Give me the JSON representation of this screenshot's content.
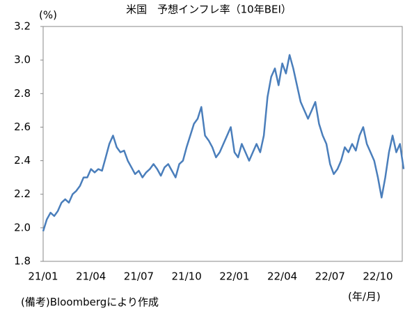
{
  "chart_data": {
    "type": "line",
    "title": "米国　予想インフレ率（10年BEI）",
    "y_unit_label": "(%)",
    "x_unit_label": "(年/月)",
    "source": "(備考)Bloombergにより作成",
    "categories": [
      "21/01",
      null,
      null,
      null,
      null,
      null,
      null,
      null,
      null,
      null,
      null,
      null,
      null,
      "21/04",
      null,
      null,
      null,
      null,
      null,
      null,
      null,
      null,
      null,
      null,
      null,
      null,
      "21/07",
      null,
      null,
      null,
      null,
      null,
      null,
      null,
      null,
      null,
      null,
      null,
      null,
      "21/10",
      null,
      null,
      null,
      null,
      null,
      null,
      null,
      null,
      null,
      null,
      null,
      null,
      "22/01",
      null,
      null,
      null,
      null,
      null,
      null,
      null,
      null,
      null,
      null,
      null,
      null,
      "22/04",
      null,
      null,
      null,
      null,
      null,
      null,
      null,
      null,
      null,
      null,
      null,
      null,
      "22/07",
      null,
      null,
      null,
      null,
      null,
      null,
      null,
      null,
      null,
      null,
      null,
      null,
      "22/10",
      null,
      null,
      null,
      null,
      null,
      null,
      null
    ],
    "values": [
      1.98,
      2.05,
      2.09,
      2.07,
      2.1,
      2.15,
      2.17,
      2.15,
      2.2,
      2.22,
      2.25,
      2.3,
      2.3,
      2.35,
      2.33,
      2.35,
      2.34,
      2.42,
      2.5,
      2.55,
      2.48,
      2.45,
      2.46,
      2.4,
      2.36,
      2.32,
      2.34,
      2.3,
      2.33,
      2.35,
      2.38,
      2.35,
      2.31,
      2.36,
      2.38,
      2.34,
      2.3,
      2.38,
      2.4,
      2.48,
      2.55,
      2.62,
      2.65,
      2.72,
      2.55,
      2.52,
      2.48,
      2.42,
      2.45,
      2.5,
      2.55,
      2.6,
      2.45,
      2.42,
      2.5,
      2.45,
      2.4,
      2.45,
      2.5,
      2.45,
      2.55,
      2.78,
      2.9,
      2.95,
      2.85,
      2.98,
      2.92,
      3.03,
      2.95,
      2.85,
      2.75,
      2.7,
      2.65,
      2.7,
      2.75,
      2.62,
      2.55,
      2.5,
      2.38,
      2.32,
      2.35,
      2.4,
      2.48,
      2.45,
      2.5,
      2.46,
      2.55,
      2.6,
      2.5,
      2.45,
      2.4,
      2.3,
      2.18,
      2.3,
      2.45,
      2.55,
      2.45,
      2.5,
      2.35
    ],
    "color": "#4a7ebb",
    "ylim": [
      1.8,
      3.2
    ],
    "yticks": [
      1.8,
      2,
      2.2,
      2.4,
      2.6,
      2.8,
      3,
      3.2
    ],
    "ytick_labels": [
      "1.8",
      "2.0",
      "2.2",
      "2.4",
      "2.6",
      "2.8",
      "3.0",
      "3.2"
    ]
  }
}
